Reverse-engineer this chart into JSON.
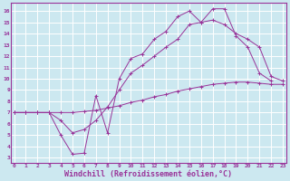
{
  "background_color": "#cce8f0",
  "line_color": "#993399",
  "grid_color": "#b8d8e0",
  "xlabel": "Windchill (Refroidissement éolien,°C)",
  "xlabel_fontsize": 6.0,
  "ytick_labels": [
    "3",
    "4",
    "5",
    "6",
    "7",
    "8",
    "9",
    "10",
    "11",
    "12",
    "13",
    "14",
    "15",
    "16"
  ],
  "ytick_values": [
    3,
    4,
    5,
    6,
    7,
    8,
    9,
    10,
    11,
    12,
    13,
    14,
    15,
    16
  ],
  "xtick_labels": [
    "0",
    "1",
    "2",
    "3",
    "4",
    "5",
    "6",
    "7",
    "8",
    "9",
    "10",
    "11",
    "12",
    "13",
    "14",
    "15",
    "16",
    "17",
    "18",
    "19",
    "20",
    "21",
    "22",
    "23"
  ],
  "xtick_values": [
    0,
    1,
    2,
    3,
    4,
    5,
    6,
    7,
    8,
    9,
    10,
    11,
    12,
    13,
    14,
    15,
    16,
    17,
    18,
    19,
    20,
    21,
    22,
    23
  ],
  "xlim": [
    -0.3,
    23.3
  ],
  "ylim": [
    2.5,
    16.7
  ],
  "line1_x": [
    0,
    1,
    2,
    3,
    4,
    5,
    6,
    7,
    8,
    9,
    10,
    11,
    12,
    13,
    14,
    15,
    16,
    17,
    18,
    19,
    20,
    21,
    22
  ],
  "line1_y": [
    7.0,
    7.0,
    7.0,
    7.0,
    5.0,
    3.3,
    3.4,
    8.5,
    5.2,
    10.0,
    11.8,
    12.2,
    13.5,
    14.2,
    15.5,
    16.0,
    15.0,
    16.2,
    16.2,
    13.8,
    12.8,
    10.5,
    9.8
  ],
  "line2_x": [
    0,
    1,
    2,
    3,
    4,
    5,
    6,
    7,
    8,
    9,
    10,
    11,
    12,
    13,
    14,
    15,
    16,
    17,
    18,
    19,
    20,
    21,
    22,
    23
  ],
  "line2_y": [
    7.0,
    7.0,
    7.0,
    7.0,
    6.3,
    5.2,
    5.5,
    6.3,
    7.5,
    9.0,
    10.5,
    11.2,
    12.0,
    12.8,
    13.5,
    14.8,
    15.0,
    15.2,
    14.8,
    14.0,
    13.5,
    12.8,
    10.2,
    9.8
  ],
  "line3_x": [
    0,
    1,
    2,
    3,
    4,
    5,
    6,
    7,
    8,
    9,
    10,
    11,
    12,
    13,
    14,
    15,
    16,
    17,
    18,
    19,
    20,
    21,
    22,
    23
  ],
  "line3_y": [
    7.0,
    7.0,
    7.0,
    7.0,
    7.0,
    7.0,
    7.1,
    7.2,
    7.4,
    7.6,
    7.9,
    8.1,
    8.4,
    8.6,
    8.9,
    9.1,
    9.3,
    9.5,
    9.6,
    9.7,
    9.7,
    9.6,
    9.5,
    9.5
  ]
}
